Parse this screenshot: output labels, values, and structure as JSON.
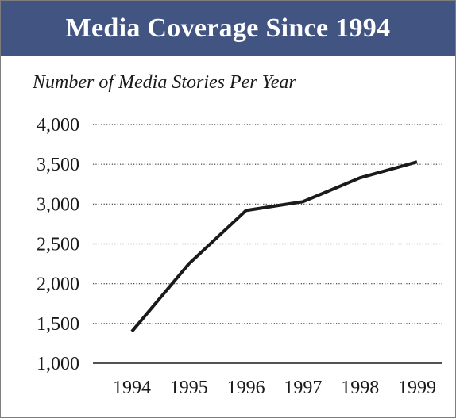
{
  "chart_data": {
    "type": "line",
    "title": "Media Coverage Since 1994",
    "subtitle": "Number of Media Stories Per Year",
    "xlabel": "",
    "ylabel": "",
    "x": [
      "1994",
      "1995",
      "1996",
      "1997",
      "1998",
      "1999"
    ],
    "values": [
      1400,
      2250,
      2920,
      3030,
      3330,
      3530
    ],
    "ylim": [
      1000,
      4000
    ],
    "yticks": [
      1000,
      1500,
      2000,
      2500,
      3000,
      3500,
      4000
    ],
    "ytick_labels": [
      "1,000",
      "1,500",
      "2,000",
      "2,500",
      "3,000",
      "3,500",
      "4,000"
    ],
    "grid": "horizontal-dotted",
    "legend": "none",
    "colors": {
      "header": "#425582",
      "line": "#1a1a1a",
      "grid": "#333333"
    }
  }
}
